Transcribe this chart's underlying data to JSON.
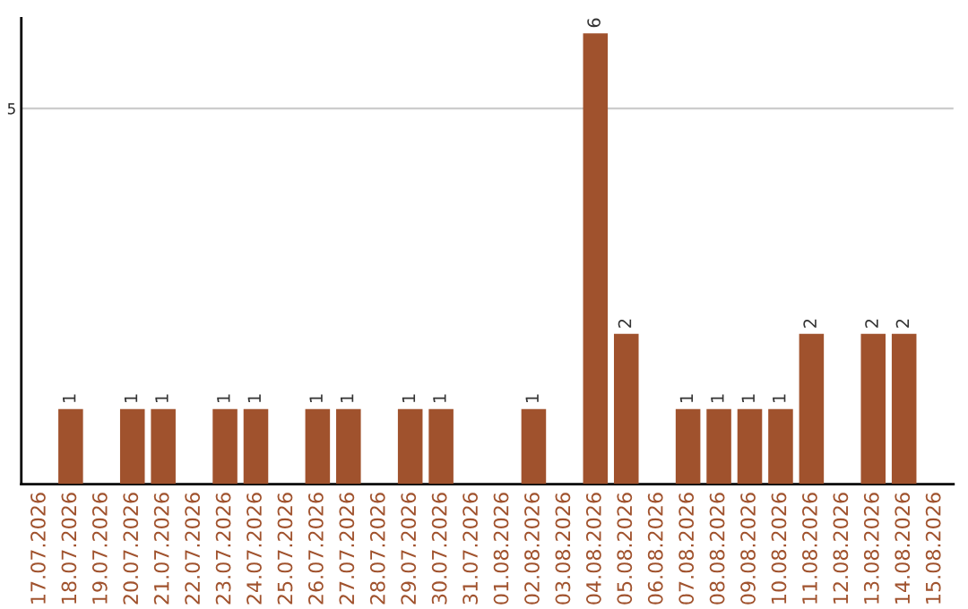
{
  "chart_data": {
    "type": "bar",
    "categories": [
      "17.07.2026",
      "18.07.2026",
      "19.07.2026",
      "20.07.2026",
      "21.07.2026",
      "22.07.2026",
      "23.07.2026",
      "24.07.2026",
      "25.07.2026",
      "26.07.2026",
      "27.07.2026",
      "28.07.2026",
      "29.07.2026",
      "30.07.2026",
      "31.07.2026",
      "01.08.2026",
      "02.08.2026",
      "03.08.2026",
      "04.08.2026",
      "05.08.2026",
      "06.08.2026",
      "07.08.2026",
      "08.08.2026",
      "09.08.2026",
      "10.08.2026",
      "11.08.2026",
      "12.08.2026",
      "13.08.2026",
      "14.08.2026",
      "15.08.2026"
    ],
    "values": [
      0,
      1,
      0,
      1,
      1,
      0,
      1,
      1,
      0,
      1,
      1,
      0,
      1,
      1,
      0,
      0,
      1,
      0,
      6,
      2,
      0,
      1,
      1,
      1,
      1,
      2,
      0,
      2,
      2,
      0
    ],
    "value_labels": [
      null,
      "1",
      null,
      "1",
      "1",
      null,
      "1",
      "1",
      null,
      "1",
      "1",
      null,
      "1",
      "1",
      null,
      null,
      "1",
      null,
      "6",
      "2",
      null,
      "1",
      "1",
      "1",
      "1",
      "2",
      null,
      "2",
      "2",
      null
    ],
    "color": "#a0522d",
    "ylim": [
      0,
      6.2
    ],
    "yticks": [
      5
    ],
    "grid": "y",
    "legend": false
  }
}
